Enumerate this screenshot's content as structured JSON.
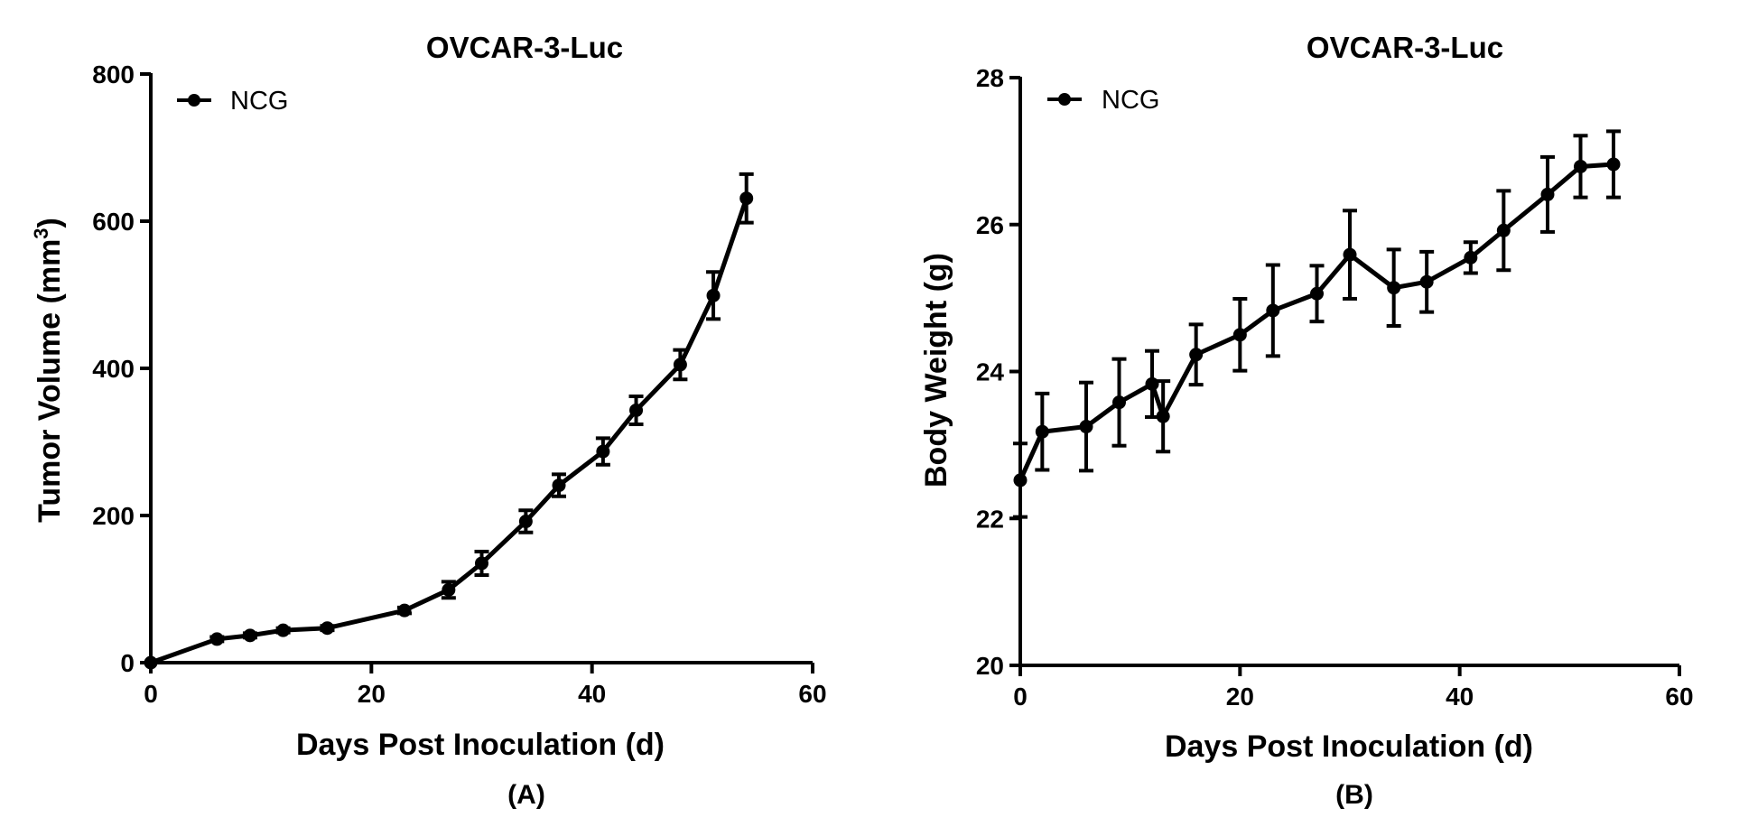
{
  "chart_data": [
    {
      "panel_label": "(A)",
      "type": "line",
      "title": "OVCAR-3-Luc",
      "xlabel": "Days Post Inoculation (d)",
      "ylabel_main": "Tumor Volume (mm",
      "ylabel_sup": "3",
      "ylabel_close": ")",
      "xlim": [
        0,
        60
      ],
      "ylim": [
        0,
        800
      ],
      "xticks": [
        0,
        20,
        40,
        60
      ],
      "yticks": [
        0,
        200,
        400,
        600,
        800
      ],
      "grid": false,
      "legend_position": "top-left",
      "color": "#000000",
      "series": [
        {
          "name": "NCG",
          "x": [
            0,
            6,
            9,
            12,
            16,
            23,
            27,
            30,
            34,
            37,
            41,
            44,
            48,
            51,
            54
          ],
          "y": [
            0,
            32,
            37,
            44,
            47,
            71,
            99,
            135,
            192,
            241,
            287,
            343,
            405,
            499,
            631
          ],
          "err": [
            0,
            3,
            3,
            3,
            3,
            4,
            11,
            16,
            15,
            15,
            18,
            19,
            20,
            32,
            33
          ]
        }
      ]
    },
    {
      "panel_label": "(B)",
      "type": "line",
      "title": "OVCAR-3-Luc",
      "xlabel": "Days Post Inoculation (d)",
      "ylabel_main": "Body Weight (g)",
      "ylabel_sup": "",
      "ylabel_close": "",
      "xlim": [
        0,
        60
      ],
      "ylim": [
        20,
        28
      ],
      "xticks": [
        0,
        20,
        40,
        60
      ],
      "yticks": [
        20,
        22,
        24,
        26,
        28
      ],
      "grid": false,
      "legend_position": "top-left",
      "color": "#000000",
      "series": [
        {
          "name": "NCG",
          "x": [
            0,
            2,
            6,
            9,
            12,
            13,
            16,
            20,
            23,
            27,
            30,
            34,
            37,
            41,
            44,
            48,
            51,
            54
          ],
          "y": [
            22.52,
            23.18,
            23.25,
            23.58,
            23.83,
            23.39,
            24.23,
            24.5,
            24.83,
            25.06,
            25.59,
            25.14,
            25.22,
            25.55,
            25.92,
            26.41,
            26.79,
            26.82
          ],
          "err": [
            0.5,
            0.52,
            0.6,
            0.59,
            0.45,
            0.48,
            0.41,
            0.49,
            0.62,
            0.38,
            0.6,
            0.52,
            0.41,
            0.21,
            0.54,
            0.51,
            0.42,
            0.45
          ]
        }
      ]
    }
  ]
}
